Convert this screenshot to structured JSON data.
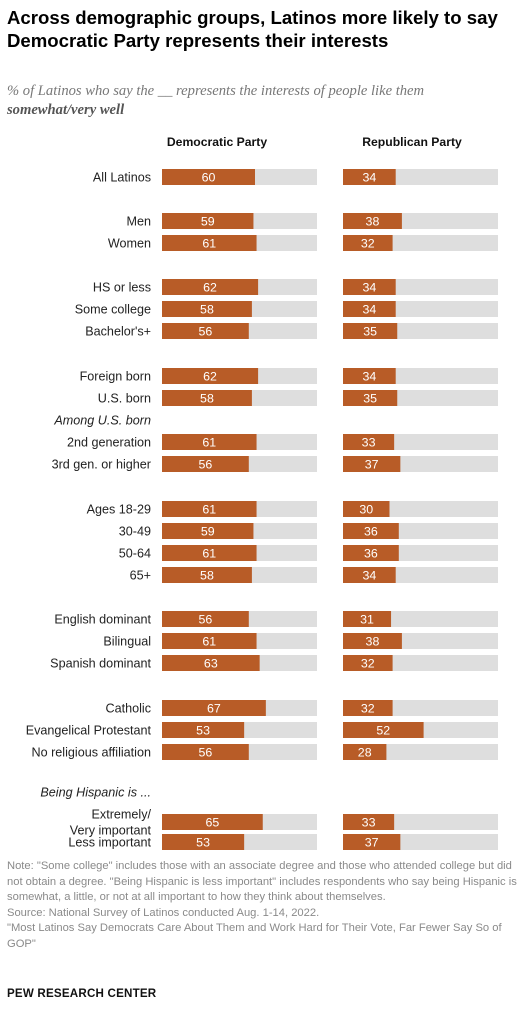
{
  "title": "Across demographic groups, Latinos more likely to say Democratic Party represents their interests",
  "subtitle": "% of Latinos who say the __ represents the interests of people like them",
  "subtitle_emphasis": "somewhat/very well",
  "colors": {
    "bar": "#b85c27",
    "track": "#dedede",
    "bar_text": "#ffffff"
  },
  "chart_data": {
    "type": "bar",
    "orientation": "horizontal",
    "xlim": [
      0,
      100
    ],
    "grid": false,
    "series": [
      {
        "name": "Democratic Party",
        "values": [
          60,
          59,
          61,
          62,
          58,
          56,
          62,
          58,
          null,
          61,
          56,
          61,
          59,
          61,
          58,
          56,
          61,
          63,
          67,
          53,
          56,
          null,
          65,
          53
        ]
      },
      {
        "name": "Republican Party",
        "values": [
          34,
          38,
          32,
          34,
          34,
          35,
          34,
          35,
          null,
          33,
          37,
          30,
          36,
          36,
          34,
          31,
          38,
          32,
          32,
          52,
          28,
          null,
          33,
          37
        ]
      }
    ],
    "categories": [
      "All Latinos",
      "Men",
      "Women",
      "HS or less",
      "Some college",
      "Bachelor's+",
      "Foreign born",
      "U.S. born",
      "Among U.S. born",
      "2nd generation",
      "3rd gen. or higher",
      "Ages 18-29",
      "30-49",
      "50-64",
      "65+",
      "English dominant",
      "Bilingual",
      "Spanish dominant",
      "Catholic",
      "Evangelical Protestant",
      "No religious affiliation",
      "Being Hispanic is ...",
      "Extremely/\nVery important",
      "Less important"
    ],
    "header_categories": [
      "Among U.S. born",
      "Being Hispanic is ..."
    ]
  },
  "notes": [
    "Note: \"Some college\" includes those with an associate degree and those who attended college but did not obtain a degree. \"Being Hispanic is less important\" includes respondents who say being Hispanic is somewhat, a little, or not at all important to how they think about themselves.",
    "Source: National Survey of Latinos conducted Aug. 1-14, 2022.",
    "\"Most Latinos Say Democrats Care About Them and Work Hard for Their Vote, Far Fewer Say So of GOP\""
  ],
  "credit": "PEW RESEARCH CENTER"
}
